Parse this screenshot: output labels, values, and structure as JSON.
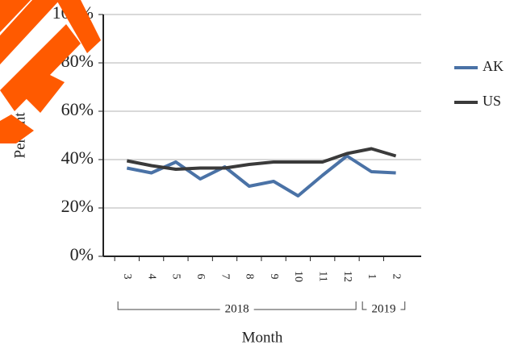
{
  "chart_data": {
    "type": "line",
    "categories": [
      "3",
      "4",
      "5",
      "6",
      "7",
      "8",
      "9",
      "10",
      "11",
      "12",
      "1",
      "2"
    ],
    "years": [
      "2018",
      "2018",
      "2018",
      "2018",
      "2018",
      "2018",
      "2018",
      "2018",
      "2018",
      "2018",
      "2019",
      "2019"
    ],
    "x_label": "Month",
    "y_label": "Percent",
    "series": [
      {
        "name": "AK",
        "color": "#4a72a6",
        "values": [
          36.5,
          34.5,
          39,
          32,
          37,
          29,
          31,
          25,
          33.5,
          41.5,
          35,
          34.5
        ]
      },
      {
        "name": "US",
        "color": "#3a3a3a",
        "values": [
          39.5,
          37.5,
          36,
          36.5,
          36.5,
          38,
          39,
          39,
          39,
          42.5,
          44.5,
          41.5
        ]
      }
    ],
    "ylim": [
      0,
      100
    ],
    "yticks": [
      {
        "value": 0,
        "label": "0%"
      },
      {
        "value": 20,
        "label": "20%"
      },
      {
        "value": 40,
        "label": "40%"
      },
      {
        "value": 60,
        "label": "60%"
      },
      {
        "value": 80,
        "label": "80%"
      },
      {
        "value": 100,
        "label": "100%"
      }
    ],
    "grid": true,
    "legend": "right"
  }
}
